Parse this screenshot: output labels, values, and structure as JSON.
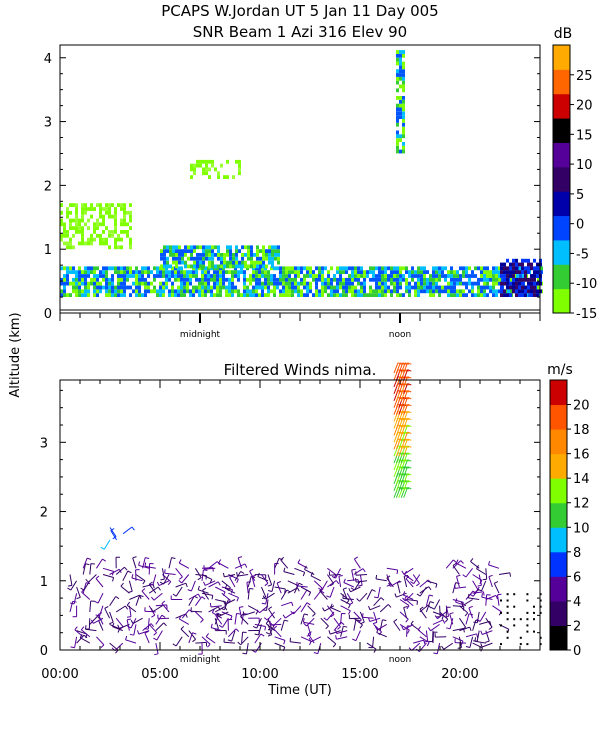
{
  "chart_data": [
    {
      "type": "heatmap",
      "title_line1": "PCAPS W.Jordan UT   5 Jan 11 Day 005",
      "title_line2": "SNR Beam 1 Azi 316 Elev 90",
      "colorbar_unit": "dB",
      "colorbar_ticks": [
        "25",
        "20",
        "15",
        "10",
        "5",
        "0",
        "-5",
        "-10",
        "-15"
      ],
      "colorbar_range": [
        -15,
        30
      ],
      "colorbar_colors": [
        "#7fff00",
        "#33cc33",
        "#00bfff",
        "#0044ff",
        "#0000aa",
        "#330066",
        "#550099",
        "#000000",
        "#cc0000",
        "#ff6600",
        "#ffaa00"
      ],
      "ytick_labels": [
        "0",
        "1",
        "2",
        "3",
        "4"
      ],
      "ylim": [
        0,
        4.2
      ],
      "xlim": [
        0,
        24
      ],
      "time_markers": [
        "midnight",
        "noon"
      ],
      "time_marker_hours": [
        7,
        17
      ],
      "approx_echo_layers": [
        {
          "hour_start": 0.0,
          "hour_end": 24.0,
          "alt_bottom": 0.25,
          "alt_top": 0.7,
          "level": "strong"
        },
        {
          "hour_start": 5.0,
          "hour_end": 11.0,
          "alt_bottom": 0.7,
          "alt_top": 1.05,
          "level": "strong"
        },
        {
          "hour_start": 0.0,
          "hour_end": 3.5,
          "alt_bottom": 1.0,
          "alt_top": 1.7,
          "level": "weak"
        },
        {
          "hour_start": 6.5,
          "hour_end": 9.0,
          "alt_bottom": 2.1,
          "alt_top": 2.4,
          "level": "weak"
        },
        {
          "hour_start": 16.8,
          "hour_end": 17.2,
          "alt_bottom": 2.5,
          "alt_top": 4.1,
          "level": "strong"
        },
        {
          "hour_start": 22.0,
          "hour_end": 24.0,
          "alt_bottom": 0.25,
          "alt_top": 0.8,
          "level": "very strong"
        }
      ]
    },
    {
      "type": "scatter",
      "title": "Filtered Winds nima.",
      "colorbar_unit": "m/s",
      "colorbar_ticks": [
        "0",
        "2",
        "4",
        "6",
        "8",
        "10",
        "12",
        "14",
        "16",
        "18",
        "20"
      ],
      "colorbar_range": [
        0,
        22
      ],
      "colorbar_colors": [
        "#000000",
        "#330066",
        "#550099",
        "#0033ff",
        "#00bfff",
        "#33cc33",
        "#7fff00",
        "#ffaa00",
        "#ff8800",
        "#ff5500",
        "#cc0000"
      ],
      "ytick_labels": [
        "0",
        "1",
        "2",
        "3"
      ],
      "ylim": [
        0,
        3.9
      ],
      "xlim": [
        0,
        24
      ],
      "xtick_labels": [
        "00:00",
        "05:00",
        "10:00",
        "15:00",
        "20:00"
      ],
      "xtick_values": [
        0,
        5,
        10,
        15,
        20
      ],
      "xlabel": "Time (UT)",
      "time_markers": [
        "midnight",
        "noon"
      ],
      "time_marker_hours": [
        7,
        17
      ],
      "approx_barb_groups": [
        {
          "hour_start": 0.5,
          "hour_end": 22.0,
          "alt_bottom": 0.1,
          "alt_top": 1.2,
          "speed": 4
        },
        {
          "hour_start": 16.7,
          "hour_end": 17.3,
          "alt_bottom": 2.2,
          "alt_top": 2.8,
          "speed": 12
        },
        {
          "hour_start": 16.7,
          "hour_end": 17.3,
          "alt_bottom": 2.8,
          "alt_top": 3.4,
          "speed": 15
        },
        {
          "hour_start": 16.7,
          "hour_end": 17.3,
          "alt_bottom": 3.4,
          "alt_top": 4.0,
          "speed": 19
        },
        {
          "hour_start": 2.5,
          "hour_end": 3.3,
          "alt_bottom": 1.5,
          "alt_top": 1.8,
          "speed": 8
        },
        {
          "hour_start": 22.0,
          "hour_end": 24.0,
          "alt_bottom": 0.1,
          "alt_top": 0.9,
          "speed": 0.5
        }
      ]
    }
  ],
  "shared": {
    "ylabel": "Altitude (km)"
  }
}
